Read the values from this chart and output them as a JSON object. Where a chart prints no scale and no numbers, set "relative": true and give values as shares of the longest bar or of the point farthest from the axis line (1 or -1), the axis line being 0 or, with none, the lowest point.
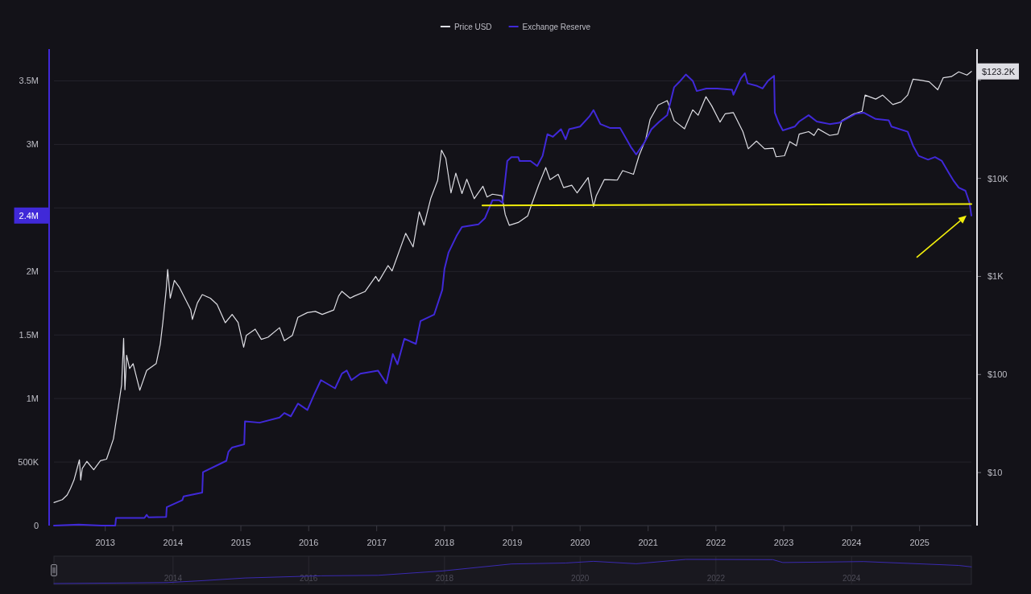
{
  "chart_data": [
    {
      "type": "line",
      "legend": "top",
      "log": "y2",
      "grid": "y",
      "xlim": [
        "2012-03-31",
        "2025-10-07"
      ],
      "xticks": [
        "2013",
        "2014",
        "2015",
        "2016",
        "2017",
        "2018",
        "2019",
        "2020",
        "2021",
        "2022",
        "2023",
        "2024",
        "2025"
      ],
      "ylim": [
        0,
        3750000
      ],
      "yticks": [
        0,
        {
          "value": 500000,
          "label": "500K"
        },
        {
          "value": 1000000,
          "label": "1M"
        },
        {
          "value": 1500000,
          "label": "1.5M"
        },
        {
          "value": 2000000,
          "label": "2M"
        },
        {
          "value": 2440000,
          "label": "2.4M"
        },
        {
          "value": 2500000,
          "label": null
        },
        {
          "value": 3000000,
          "label": "3M"
        },
        {
          "value": 3500000,
          "label": "3.5M"
        }
      ],
      "y2lim": [
        2.88,
        208000
      ],
      "y2ticks": [
        {
          "value": 10,
          "label": "$10"
        },
        {
          "value": 100,
          "label": "$100"
        },
        {
          "value": 1000,
          "label": "$1K"
        },
        {
          "value": 10000,
          "label": "$10K"
        },
        {
          "value": 100000,
          "label": null
        }
      ],
      "series": [
        {
          "name": "Price USD",
          "color": "#dedee4",
          "axis": "y2",
          "x": [
            "2012-03-31",
            "2012-05-15",
            "2012-06-10",
            "2012-06-28",
            "2012-07-17",
            "2012-08-15",
            "2012-08-22",
            "2012-08-30",
            "2012-09-24",
            "2012-10-31",
            "2012-12-06",
            "2013-01-08",
            "2013-02-14",
            "2013-03-11",
            "2013-03-30",
            "2013-04-10",
            "2013-04-17",
            "2013-04-26",
            "2013-05-12",
            "2013-05-31",
            "2013-07-06",
            "2013-08-12",
            "2013-10-02",
            "2013-10-24",
            "2013-11-07",
            "2013-11-25",
            "2013-12-03",
            "2013-12-17",
            "2014-01-08",
            "2014-02-03",
            "2014-04-06",
            "2014-04-15",
            "2014-05-12",
            "2014-06-07",
            "2014-07-21",
            "2014-08-26",
            "2014-10-09",
            "2014-11-15",
            "2014-12-17",
            "2015-01-16",
            "2015-01-30",
            "2015-03-19",
            "2015-04-21",
            "2015-05-27",
            "2015-07-28",
            "2015-08-23",
            "2015-10-05",
            "2015-11-04",
            "2015-12-25",
            "2016-02-06",
            "2016-03-14",
            "2016-05-15",
            "2016-06-10",
            "2016-06-28",
            "2016-08-11",
            "2016-09-02",
            "2016-10-30",
            "2016-12-27",
            "2017-01-12",
            "2017-03-03",
            "2017-03-25",
            "2017-06-06",
            "2017-07-16",
            "2017-08-18",
            "2017-09-13",
            "2017-10-19",
            "2017-11-25",
            "2017-12-16",
            "2018-01-08",
            "2018-02-05",
            "2018-03-03",
            "2018-04-05",
            "2018-05-01",
            "2018-06-10",
            "2018-07-27",
            "2018-08-18",
            "2018-09-16",
            "2018-11-06",
            "2018-11-24",
            "2018-12-16",
            "2019-02-02",
            "2019-03-25",
            "2019-04-16",
            "2019-05-22",
            "2019-06-30",
            "2019-07-23",
            "2019-09-05",
            "2019-10-04",
            "2019-11-17",
            "2019-12-16",
            "2020-02-13",
            "2020-03-13",
            "2020-03-28",
            "2020-05-10",
            "2020-07-19",
            "2020-08-17",
            "2020-10-14",
            "2020-11-13",
            "2020-12-19",
            "2021-01-12",
            "2021-02-24",
            "2021-04-14",
            "2021-05-21",
            "2021-07-16",
            "2021-08-29",
            "2021-09-27",
            "2021-11-08",
            "2021-12-09",
            "2022-01-23",
            "2022-02-20",
            "2022-04-05",
            "2022-05-26",
            "2022-06-24",
            "2022-08-07",
            "2022-09-20",
            "2022-11-06",
            "2022-11-21",
            "2023-01-05",
            "2023-02-02",
            "2023-03-10",
            "2023-03-25",
            "2023-05-15",
            "2023-06-13",
            "2023-07-05",
            "2023-09-05",
            "2023-10-19",
            "2023-11-10",
            "2024-01-15",
            "2024-02-27",
            "2024-03-14",
            "2024-05-10",
            "2024-06-16",
            "2024-08-10",
            "2024-09-23",
            "2024-10-29",
            "2024-11-27",
            "2025-01-12",
            "2025-02-22",
            "2025-04-09",
            "2025-05-08",
            "2025-06-21",
            "2025-07-31",
            "2025-09-13",
            "2025-10-07"
          ],
          "values": [
            4.95,
            5.3,
            5.9,
            6.9,
            8.4,
            13.5,
            8.4,
            11,
            13,
            10.7,
            13.2,
            13.7,
            22,
            45,
            78,
            234,
            70,
            157,
            115,
            129,
            69,
            110,
            129,
            203,
            339,
            733,
            1175,
            600,
            910,
            780,
            459,
            365,
            537,
            653,
            600,
            518,
            337,
            410,
            340,
            190,
            250,
            290,
            228,
            240,
            300,
            221,
            250,
            383,
            428,
            440,
            410,
            455,
            630,
            705,
            600,
            630,
            700,
            1000,
            890,
            1290,
            1140,
            2750,
            2000,
            4570,
            3330,
            6240,
            9500,
            19400,
            16000,
            7100,
            11300,
            7000,
            9800,
            6200,
            8300,
            6450,
            6900,
            6650,
            4270,
            3320,
            3550,
            4150,
            5500,
            8500,
            12900,
            9700,
            11000,
            8040,
            8500,
            7100,
            10200,
            5150,
            6650,
            9700,
            9600,
            12000,
            11000,
            17000,
            25000,
            40000,
            56000,
            62000,
            38800,
            32000,
            50000,
            44000,
            68000,
            55000,
            37500,
            45600,
            46800,
            30000,
            20000,
            24000,
            20000,
            20300,
            16600,
            17000,
            23700,
            21500,
            28300,
            30000,
            27400,
            32000,
            27400,
            28300,
            38800,
            45600,
            48300,
            70600,
            64300,
            70600,
            56600,
            60200,
            70600,
            102800,
            99600,
            96500,
            80000,
            106000,
            109000,
            122000,
            113000,
            123200
          ],
          "value_labels": [
            null,
            null,
            null,
            null,
            null,
            null,
            null,
            null,
            null,
            null,
            null,
            null,
            null,
            null,
            null,
            null,
            null,
            null,
            null,
            null,
            null,
            null,
            null,
            null,
            null,
            null,
            null,
            null,
            null,
            null,
            null,
            null,
            null,
            null,
            null,
            null,
            null,
            null,
            null,
            null,
            null,
            null,
            null,
            null,
            null,
            null,
            null,
            null,
            null,
            null,
            null,
            null,
            null,
            null,
            null,
            null,
            null,
            null,
            null,
            null,
            null,
            null,
            null,
            null,
            null,
            null,
            null,
            null,
            null,
            null,
            null,
            null,
            null,
            null,
            null,
            null,
            null,
            null,
            null,
            null,
            null,
            null,
            null,
            null,
            null,
            null,
            null,
            null,
            null,
            null,
            null,
            null,
            null,
            null,
            null,
            null,
            null,
            null,
            null,
            null,
            null,
            null,
            null,
            null,
            null,
            null,
            null,
            null,
            null,
            null,
            null,
            null,
            null,
            null,
            null,
            null,
            null,
            null,
            null,
            null,
            null,
            null,
            null,
            null,
            null,
            null,
            null,
            null,
            null,
            null,
            null,
            null,
            null,
            null,
            null,
            null,
            null,
            null,
            null,
            null,
            null,
            null,
            null,
            "$123.2K"
          ]
        },
        {
          "name": "Exchange Reserve",
          "color": "#4029d8",
          "x": [
            "2012-03-31",
            "2012-08-11",
            "2012-12-13",
            "2013-02-24",
            "2013-02-28",
            "2013-07-31",
            "2013-08-12",
            "2013-08-22",
            "2013-11-25",
            "2013-11-28",
            "2014-02-20",
            "2014-02-27",
            "2014-06-07",
            "2014-06-11",
            "2014-10-15",
            "2014-10-26",
            "2014-11-15",
            "2015-01-19",
            "2015-01-23",
            "2015-04-12",
            "2015-07-28",
            "2015-08-23",
            "2015-09-27",
            "2015-11-04",
            "2015-12-25",
            "2016-01-30",
            "2016-03-07",
            "2016-05-22",
            "2016-06-28",
            "2016-07-24",
            "2016-08-18",
            "2016-10-05",
            "2017-01-08",
            "2017-02-22",
            "2017-03-29",
            "2017-04-23",
            "2017-05-30",
            "2017-07-31",
            "2017-08-25",
            "2017-11-06",
            "2017-12-20",
            "2018-01-01",
            "2018-01-23",
            "2018-03-07",
            "2018-04-05",
            "2018-07-02",
            "2018-08-07",
            "2018-09-16",
            "2018-10-23",
            "2018-11-10",
            "2018-12-05",
            "2018-12-27",
            "2019-02-02",
            "2019-02-09",
            "2019-04-09",
            "2019-05-15",
            "2019-06-13",
            "2019-07-09",
            "2019-08-07",
            "2019-09-20",
            "2019-10-15",
            "2019-11-03",
            "2020-01-01",
            "2020-02-20",
            "2020-03-13",
            "2020-04-19",
            "2020-06-09",
            "2020-08-03",
            "2020-09-30",
            "2020-10-29",
            "2020-12-12",
            "2021-01-19",
            "2021-03-03",
            "2021-04-14",
            "2021-05-21",
            "2021-06-17",
            "2021-07-23",
            "2021-08-29",
            "2021-09-20",
            "2021-11-10",
            "2022-01-08",
            "2022-03-29",
            "2022-04-05",
            "2022-05-15",
            "2022-06-06",
            "2022-06-21",
            "2022-08-11",
            "2022-09-09",
            "2022-10-08",
            "2022-11-10",
            "2022-11-14",
            "2022-12-05",
            "2022-12-27",
            "2023-03-01",
            "2023-03-25",
            "2023-05-15",
            "2023-06-28",
            "2023-09-05",
            "2023-10-26",
            "2023-12-02",
            "2024-01-22",
            "2024-03-06",
            "2024-05-10",
            "2024-07-19",
            "2024-08-03",
            "2024-10-29",
            "2024-11-27",
            "2024-12-27",
            "2025-02-16",
            "2025-03-25",
            "2025-05-01",
            "2025-06-06",
            "2025-07-05",
            "2025-07-31",
            "2025-09-05",
            "2025-09-27",
            "2025-10-07"
          ],
          "values": [
            0,
            8000,
            0,
            0,
            60000,
            60000,
            85000,
            65000,
            68000,
            145000,
            200000,
            230000,
            260000,
            420000,
            510000,
            580000,
            615000,
            640000,
            820000,
            810000,
            850000,
            886000,
            860000,
            960000,
            910000,
            1030000,
            1145000,
            1080000,
            1196000,
            1220000,
            1145000,
            1196000,
            1220000,
            1120000,
            1350000,
            1270000,
            1470000,
            1430000,
            1610000,
            1660000,
            1855000,
            2020000,
            2150000,
            2280000,
            2350000,
            2370000,
            2420000,
            2560000,
            2560000,
            2540000,
            2870000,
            2900000,
            2900000,
            2870000,
            2870000,
            2830000,
            2910000,
            3080000,
            3060000,
            3120000,
            3040000,
            3120000,
            3140000,
            3220000,
            3270000,
            3160000,
            3130000,
            3130000,
            2980000,
            2920000,
            3015000,
            3120000,
            3180000,
            3230000,
            3450000,
            3490000,
            3550000,
            3500000,
            3420000,
            3440000,
            3440000,
            3430000,
            3390000,
            3520000,
            3560000,
            3480000,
            3460000,
            3440000,
            3500000,
            3540000,
            3250000,
            3170000,
            3110000,
            3140000,
            3180000,
            3230000,
            3180000,
            3160000,
            3170000,
            3200000,
            3240000,
            3250000,
            3200000,
            3190000,
            3140000,
            3100000,
            2990000,
            2910000,
            2880000,
            2900000,
            2870000,
            2780000,
            2710000,
            2660000,
            2635000,
            2540000,
            2440000
          ]
        },
        {
          "type": "line",
          "color": "#f2ee0c",
          "x": [
            "2018-07-24",
            "2025-10-07"
          ],
          "values": [
            2520000,
            2530000
          ]
        }
      ]
    },
    {
      "type": "line",
      "relative": true,
      "grid": "x",
      "tick_labels": "x",
      "color": "#3a2ab0",
      "xlim": [
        "2012-03-31",
        "2025-10-07"
      ],
      "xticks": [
        "2014",
        "2016",
        "2018",
        "2020",
        "2022",
        "2024"
      ],
      "x": [
        "2012-03-31",
        "2013-02-28",
        "2013-11-28",
        "2014-06-11",
        "2015-01-23",
        "2016-03-07",
        "2017-01-08",
        "2017-12-20",
        "2018-12-27",
        "2019-10-15",
        "2020-03-13",
        "2020-10-29",
        "2021-07-23",
        "2022-11-03",
        "2022-12-27",
        "2024-03-06",
        "2025-07-31",
        "2025-10-07"
      ],
      "values": [
        0,
        0.02,
        0.04,
        0.12,
        0.23,
        0.32,
        0.34,
        0.52,
        0.81,
        0.85,
        0.92,
        0.82,
        1,
        0.99,
        0.87,
        0.91,
        0.75,
        0.69
      ]
    }
  ]
}
